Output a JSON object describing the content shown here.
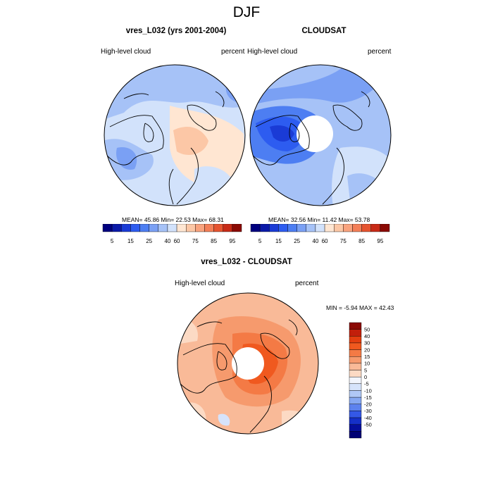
{
  "main_title": "DJF",
  "panels": {
    "model": {
      "title": "vres_L032 (yrs 2001-2004)",
      "left_label": "High-level cloud",
      "right_label": "percent",
      "stats": "MEAN=  45.86  Min=  22.53  Max=  68.31"
    },
    "obs": {
      "title": "CLOUDSAT",
      "left_label": "High-level cloud",
      "right_label": "percent",
      "stats": "MEAN=  32.56  Min=  11.42  Max=  53.78"
    },
    "diff": {
      "title": "vres_L032 - CLOUDSAT",
      "left_label": "High-level cloud",
      "right_label": "percent",
      "stats": "MIN =  -5.94 MAX =  42.43"
    }
  },
  "top_colorbar": {
    "colors": [
      "#00007f",
      "#0b1aa8",
      "#1a3bd6",
      "#2d5cf0",
      "#4d7ef2",
      "#7aa0f4",
      "#a6c2f7",
      "#d2e2fb",
      "#ffe6d2",
      "#fcc7a6",
      "#f9a37e",
      "#f47f58",
      "#e65430",
      "#c82a16",
      "#8b0a04"
    ],
    "tick_labels": [
      "5",
      "15",
      "25",
      "40",
      "60",
      "75",
      "85",
      "95"
    ]
  },
  "diff_colorbar": {
    "colors": [
      "#8b0a04",
      "#c21f0b",
      "#e33e10",
      "#f0591f",
      "#f47a45",
      "#f69a6d",
      "#f9ba98",
      "#fcdac4",
      "#f2f5fd",
      "#d6e3fb",
      "#b0c8f6",
      "#86a8f2",
      "#5c82ee",
      "#3458e6",
      "#1530c8",
      "#050f9c",
      "#000074"
    ],
    "tick_labels": [
      "50",
      "40",
      "30",
      "20",
      "15",
      "10",
      "5",
      "0",
      "-5",
      "-10",
      "-15",
      "-20",
      "-30",
      "-40",
      "-50"
    ]
  }
}
